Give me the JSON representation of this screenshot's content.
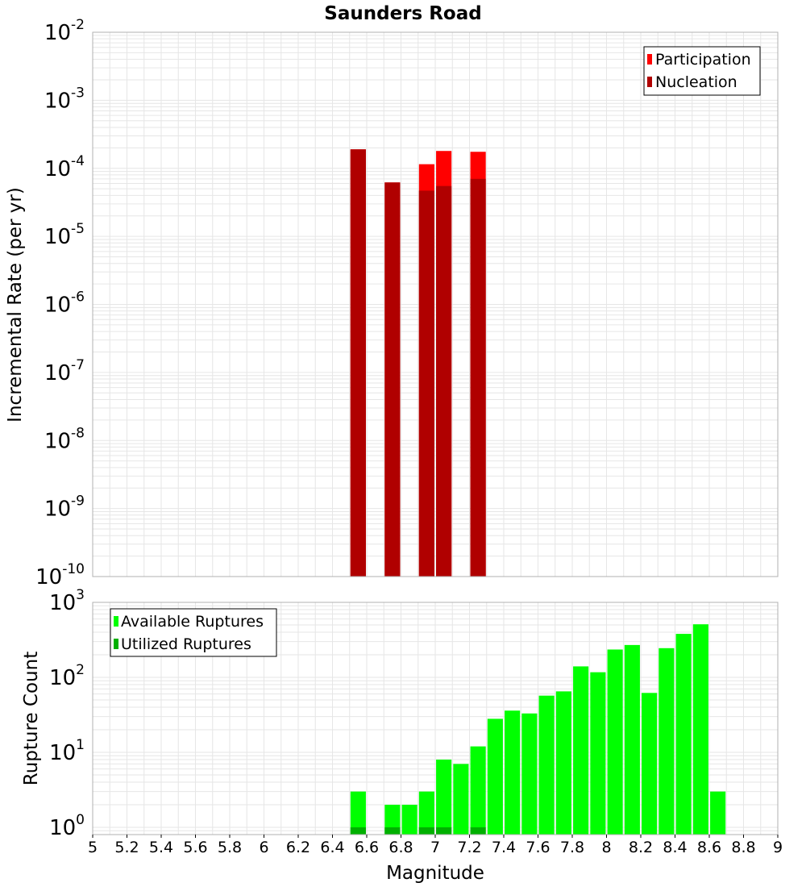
{
  "title": "Saunders Road",
  "colors": {
    "participation": "#ff0000",
    "nucleation": "#b00000",
    "available": "#00ff00",
    "utilized": "#00b000",
    "grid": "#e6e6e6",
    "frame": "#b0b0b0"
  },
  "chart_data": [
    {
      "type": "bar",
      "panel": "top",
      "ylabel": "Incremental Rate (per yr)",
      "xlabel": "",
      "yscale": "log",
      "ylim": [
        1e-10,
        0.01
      ],
      "xlim": [
        5,
        9
      ],
      "bin_width": 0.1,
      "grid": true,
      "legend_position": "top-right",
      "legend": [
        "Participation",
        "Nucleation"
      ],
      "y_tick_labels": [
        {
          "base": "10",
          "exp": "-10"
        },
        {
          "base": "10",
          "exp": "-9"
        },
        {
          "base": "10",
          "exp": "-8"
        },
        {
          "base": "10",
          "exp": "-7"
        },
        {
          "base": "10",
          "exp": "-6"
        },
        {
          "base": "10",
          "exp": "-5"
        },
        {
          "base": "10",
          "exp": "-4"
        },
        {
          "base": "10",
          "exp": "-3"
        },
        {
          "base": "10",
          "exp": "-2"
        }
      ],
      "x": [
        6.55,
        6.75,
        6.95,
        7.05,
        7.25
      ],
      "series": [
        {
          "name": "Participation",
          "values": [
            0.00019,
            6.2e-05,
            0.000115,
            0.00018,
            0.000175
          ]
        },
        {
          "name": "Nucleation",
          "values": [
            0.00019,
            6.2e-05,
            4.7e-05,
            5.5e-05,
            7e-05
          ]
        }
      ]
    },
    {
      "type": "bar",
      "panel": "bottom",
      "ylabel": "Rupture Count",
      "xlabel": "Magnitude",
      "yscale": "log",
      "ylim": [
        0.8,
        1000
      ],
      "xlim": [
        5,
        9
      ],
      "bin_width": 0.1,
      "grid": true,
      "legend_position": "top-left",
      "legend": [
        "Available Ruptures",
        "Utilized Ruptures"
      ],
      "y_tick_labels": [
        {
          "base": "10",
          "exp": "0"
        },
        {
          "base": "10",
          "exp": "1"
        },
        {
          "base": "10",
          "exp": "2"
        },
        {
          "base": "10",
          "exp": "3"
        }
      ],
      "x_tick_labels": [
        "5",
        "5.2",
        "5.4",
        "5.6",
        "5.8",
        "6",
        "6.2",
        "6.4",
        "6.6",
        "6.8",
        "7",
        "7.2",
        "7.4",
        "7.6",
        "7.8",
        "8",
        "8.2",
        "8.4",
        "8.6",
        "8.8",
        "9"
      ],
      "x": [
        6.55,
        6.75,
        6.85,
        6.95,
        7.05,
        7.15,
        7.25,
        7.35,
        7.45,
        7.55,
        7.65,
        7.75,
        7.85,
        7.95,
        8.05,
        8.15,
        8.25,
        8.35,
        8.45,
        8.55,
        8.65
      ],
      "series": [
        {
          "name": "Available Ruptures",
          "values": [
            3,
            2,
            2,
            3,
            8,
            7,
            12,
            28,
            36,
            33,
            57,
            65,
            140,
            117,
            235,
            270,
            62,
            245,
            380,
            510,
            3
          ]
        },
        {
          "name": "Utilized Ruptures",
          "values": [
            1,
            1,
            0,
            1,
            1,
            0,
            1,
            0,
            0,
            0,
            0,
            0,
            0,
            0,
            0,
            0,
            0,
            0,
            0,
            0,
            0
          ]
        }
      ]
    }
  ]
}
